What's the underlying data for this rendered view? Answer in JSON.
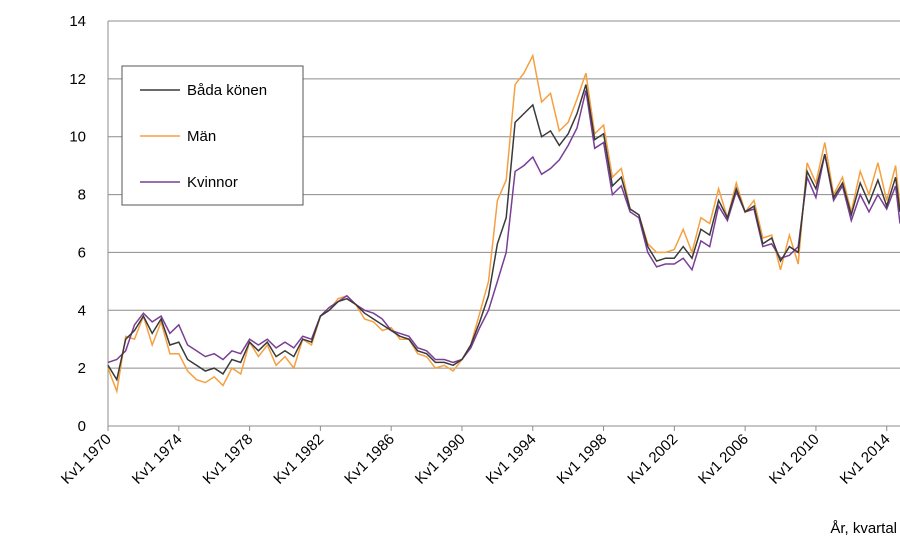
{
  "chart_data": {
    "type": "line",
    "x_label": "År, kvartal",
    "x": [
      1970,
      1970.5,
      1971,
      1971.5,
      1972,
      1972.5,
      1973,
      1973.5,
      1974,
      1974.5,
      1975,
      1975.5,
      1976,
      1976.5,
      1977,
      1977.5,
      1978,
      1978.5,
      1979,
      1979.5,
      1980,
      1980.5,
      1981,
      1981.5,
      1982,
      1982.5,
      1983,
      1983.5,
      1984,
      1984.5,
      1985,
      1985.5,
      1986,
      1986.5,
      1987,
      1987.5,
      1988,
      1988.5,
      1989,
      1989.5,
      1990,
      1990.5,
      1991,
      1991.5,
      1992,
      1992.5,
      1993,
      1993.5,
      1994,
      1994.5,
      1995,
      1995.5,
      1996,
      1996.5,
      1997,
      1997.5,
      1998,
      1998.5,
      1999,
      1999.5,
      2000,
      2000.5,
      2001,
      2001.5,
      2002,
      2002.5,
      2003,
      2003.5,
      2004,
      2004.5,
      2005,
      2005.5,
      2006,
      2006.5,
      2007,
      2007.5,
      2008,
      2008.5,
      2009,
      2009.5,
      2010,
      2010.5,
      2011,
      2011.5,
      2012,
      2012.5,
      2013,
      2013.5,
      2014,
      2014.5,
      2014.75
    ],
    "series": [
      {
        "name": "Båda könen",
        "color": "#3a3a3a",
        "values": [
          2.1,
          1.6,
          3.0,
          3.3,
          3.8,
          3.2,
          3.7,
          2.8,
          2.9,
          2.3,
          2.1,
          1.9,
          2.0,
          1.8,
          2.3,
          2.2,
          2.9,
          2.6,
          2.9,
          2.4,
          2.6,
          2.4,
          3.0,
          2.9,
          3.8,
          4.0,
          4.3,
          4.4,
          4.2,
          3.9,
          3.7,
          3.5,
          3.3,
          3.1,
          3.0,
          2.6,
          2.5,
          2.2,
          2.2,
          2.1,
          2.3,
          2.8,
          3.6,
          4.5,
          6.3,
          7.2,
          10.5,
          10.8,
          11.1,
          10.0,
          10.2,
          9.7,
          10.1,
          10.8,
          11.8,
          9.9,
          10.1,
          8.3,
          8.6,
          7.5,
          7.3,
          6.2,
          5.7,
          5.8,
          5.8,
          6.2,
          5.8,
          6.8,
          6.6,
          7.8,
          7.2,
          8.2,
          7.4,
          7.6,
          6.3,
          6.5,
          5.7,
          6.2,
          6.0,
          8.8,
          8.2,
          9.4,
          7.9,
          8.4,
          7.3,
          8.4,
          7.7,
          8.5,
          7.6,
          8.6,
          7.4
        ]
      },
      {
        "name": "Män",
        "color": "#f5a040",
        "values": [
          2.0,
          1.2,
          3.1,
          3.0,
          3.8,
          2.8,
          3.6,
          2.5,
          2.5,
          1.9,
          1.6,
          1.5,
          1.7,
          1.4,
          2.0,
          1.8,
          2.9,
          2.4,
          2.8,
          2.1,
          2.4,
          2.0,
          3.0,
          2.8,
          3.8,
          4.0,
          4.4,
          4.5,
          4.2,
          3.7,
          3.6,
          3.3,
          3.4,
          3.0,
          3.0,
          2.5,
          2.4,
          2.0,
          2.1,
          1.9,
          2.3,
          2.8,
          3.9,
          5.0,
          7.8,
          8.5,
          11.8,
          12.2,
          12.8,
          11.2,
          11.5,
          10.2,
          10.5,
          11.3,
          12.2,
          10.1,
          10.4,
          8.6,
          8.9,
          7.5,
          7.3,
          6.3,
          6.0,
          6.0,
          6.1,
          6.8,
          6.0,
          7.2,
          7.0,
          8.2,
          7.2,
          8.4,
          7.4,
          7.8,
          6.5,
          6.6,
          5.4,
          6.6,
          5.6,
          9.1,
          8.4,
          9.8,
          8.0,
          8.6,
          7.4,
          8.8,
          8.0,
          9.1,
          7.8,
          9.0,
          7.6
        ]
      },
      {
        "name": "Kvinnor",
        "color": "#7a3e96",
        "values": [
          2.2,
          2.3,
          2.6,
          3.5,
          3.9,
          3.6,
          3.8,
          3.2,
          3.5,
          2.8,
          2.6,
          2.4,
          2.5,
          2.3,
          2.6,
          2.5,
          3.0,
          2.8,
          3.0,
          2.7,
          2.9,
          2.7,
          3.1,
          3.0,
          3.8,
          4.1,
          4.3,
          4.5,
          4.2,
          4.0,
          3.9,
          3.7,
          3.3,
          3.2,
          3.1,
          2.7,
          2.6,
          2.3,
          2.3,
          2.2,
          2.3,
          2.7,
          3.4,
          4.0,
          5.0,
          6.0,
          8.8,
          9.0,
          9.3,
          8.7,
          8.9,
          9.2,
          9.7,
          10.3,
          11.6,
          9.6,
          9.8,
          8.0,
          8.3,
          7.4,
          7.2,
          6.0,
          5.5,
          5.6,
          5.6,
          5.8,
          5.4,
          6.4,
          6.2,
          7.6,
          7.1,
          8.1,
          7.4,
          7.5,
          6.2,
          6.3,
          5.8,
          5.9,
          6.2,
          8.6,
          7.9,
          9.4,
          7.8,
          8.3,
          7.1,
          8.0,
          7.4,
          8.0,
          7.5,
          8.3,
          7.0
        ]
      }
    ],
    "xlim": [
      1970,
      2014.75
    ],
    "xticks": [
      {
        "value": 1970,
        "label": "Kv1 1970"
      },
      {
        "value": 1974,
        "label": "Kv1 1974"
      },
      {
        "value": 1978,
        "label": "Kv1 1978"
      },
      {
        "value": 1982,
        "label": "Kv1 1982"
      },
      {
        "value": 1986,
        "label": "Kv1 1986"
      },
      {
        "value": 1990,
        "label": "Kv1 1990"
      },
      {
        "value": 1994,
        "label": "Kv1 1994"
      },
      {
        "value": 1998,
        "label": "Kv1 1998"
      },
      {
        "value": 2002,
        "label": "Kv1 2002"
      },
      {
        "value": 2006,
        "label": "Kv1 2006"
      },
      {
        "value": 2010,
        "label": "Kv1 2010"
      },
      {
        "value": 2014,
        "label": "Kv1 2014"
      }
    ],
    "ylim": [
      0,
      14
    ],
    "yticks": [
      0,
      2,
      4,
      6,
      8,
      10,
      12,
      14
    ],
    "grid": true,
    "legend": "upper left"
  }
}
